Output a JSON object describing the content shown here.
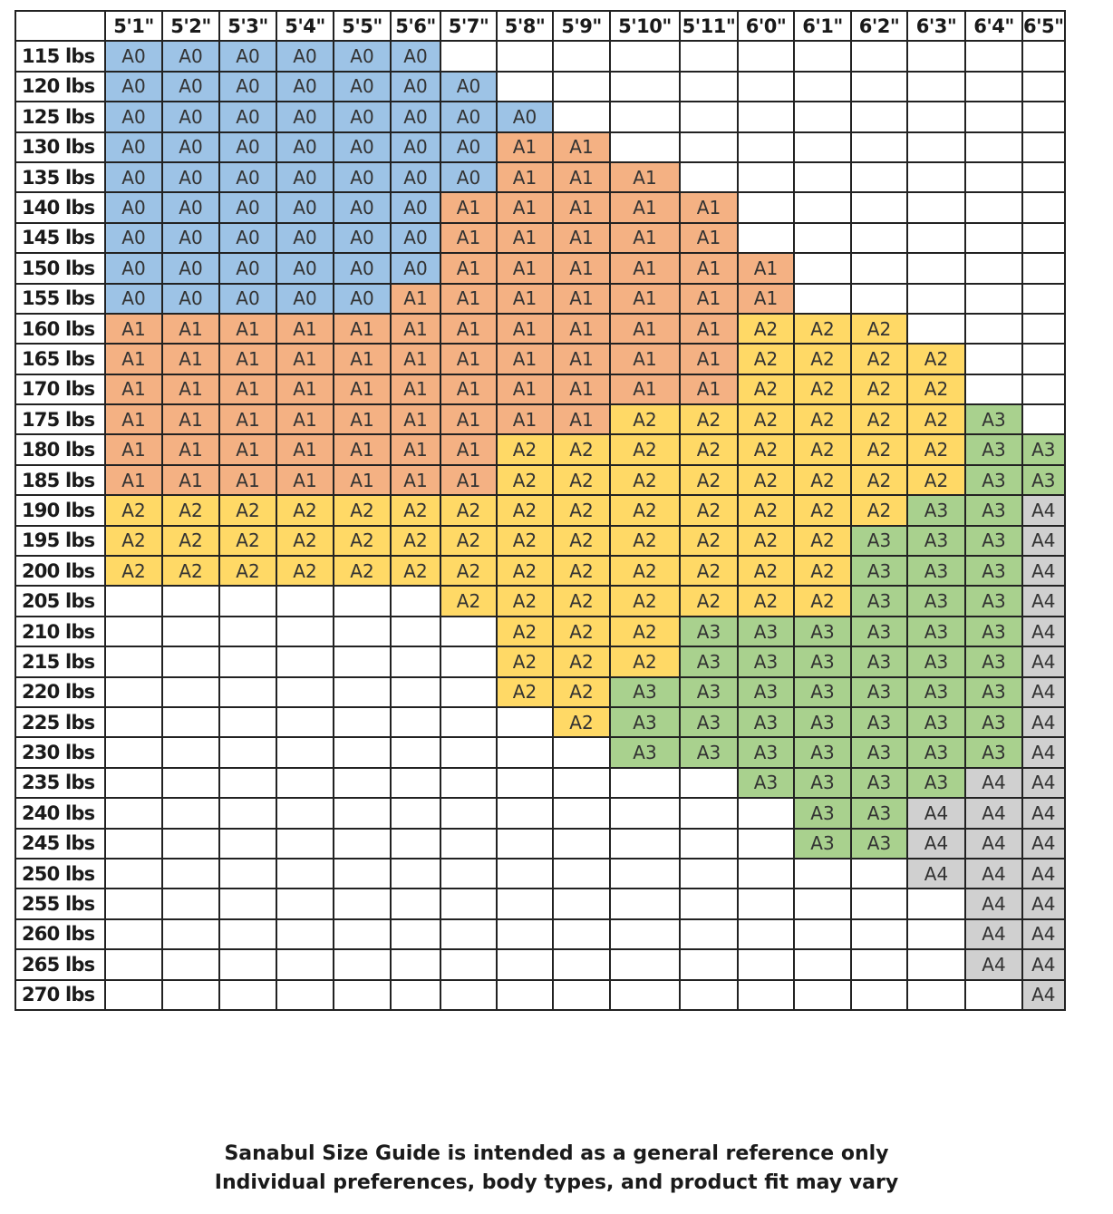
{
  "chart_data": {
    "type": "table",
    "corner": "",
    "heights": [
      "5'1\"",
      "5'2\"",
      "5'3\"",
      "5'4\"",
      "5'5\"",
      "5'6\"",
      "5'7\"",
      "5'8\"",
      "5'9\"",
      "5'10\"",
      "5'11\"",
      "6'0\"",
      "6'1\"",
      "6'2\"",
      "6'3\"",
      "6'4\"",
      "6'5\""
    ],
    "weights": [
      "115 lbs",
      "120 lbs",
      "125 lbs",
      "130 lbs",
      "135 lbs",
      "140 lbs",
      "145 lbs",
      "150 lbs",
      "155 lbs",
      "160 lbs",
      "165 lbs",
      "170 lbs",
      "175 lbs",
      "180 lbs",
      "185 lbs",
      "190 lbs",
      "195 lbs",
      "200 lbs",
      "205 lbs",
      "210 lbs",
      "215 lbs",
      "220 lbs",
      "225 lbs",
      "230 lbs",
      "235 lbs",
      "240 lbs",
      "245 lbs",
      "250 lbs",
      "255 lbs",
      "260 lbs",
      "265 lbs",
      "270 lbs"
    ],
    "rows": [
      [
        "A0",
        "A0",
        "A0",
        "A0",
        "A0",
        "A0",
        "",
        "",
        "",
        "",
        "",
        "",
        "",
        "",
        "",
        "",
        ""
      ],
      [
        "A0",
        "A0",
        "A0",
        "A0",
        "A0",
        "A0",
        "A0",
        "",
        "",
        "",
        "",
        "",
        "",
        "",
        "",
        "",
        ""
      ],
      [
        "A0",
        "A0",
        "A0",
        "A0",
        "A0",
        "A0",
        "A0",
        "A0",
        "",
        "",
        "",
        "",
        "",
        "",
        "",
        "",
        ""
      ],
      [
        "A0",
        "A0",
        "A0",
        "A0",
        "A0",
        "A0",
        "A0",
        "A1",
        "A1",
        "",
        "",
        "",
        "",
        "",
        "",
        "",
        ""
      ],
      [
        "A0",
        "A0",
        "A0",
        "A0",
        "A0",
        "A0",
        "A0",
        "A1",
        "A1",
        "A1",
        "",
        "",
        "",
        "",
        "",
        "",
        ""
      ],
      [
        "A0",
        "A0",
        "A0",
        "A0",
        "A0",
        "A0",
        "A1",
        "A1",
        "A1",
        "A1",
        "A1",
        "",
        "",
        "",
        "",
        "",
        ""
      ],
      [
        "A0",
        "A0",
        "A0",
        "A0",
        "A0",
        "A0",
        "A1",
        "A1",
        "A1",
        "A1",
        "A1",
        "",
        "",
        "",
        "",
        "",
        ""
      ],
      [
        "A0",
        "A0",
        "A0",
        "A0",
        "A0",
        "A0",
        "A1",
        "A1",
        "A1",
        "A1",
        "A1",
        "A1",
        "",
        "",
        "",
        "",
        ""
      ],
      [
        "A0",
        "A0",
        "A0",
        "A0",
        "A0",
        "A1",
        "A1",
        "A1",
        "A1",
        "A1",
        "A1",
        "A1",
        "",
        "",
        "",
        "",
        ""
      ],
      [
        "A1",
        "A1",
        "A1",
        "A1",
        "A1",
        "A1",
        "A1",
        "A1",
        "A1",
        "A1",
        "A1",
        "A2",
        "A2",
        "A2",
        "",
        "",
        ""
      ],
      [
        "A1",
        "A1",
        "A1",
        "A1",
        "A1",
        "A1",
        "A1",
        "A1",
        "A1",
        "A1",
        "A1",
        "A2",
        "A2",
        "A2",
        "A2",
        "",
        ""
      ],
      [
        "A1",
        "A1",
        "A1",
        "A1",
        "A1",
        "A1",
        "A1",
        "A1",
        "A1",
        "A1",
        "A1",
        "A2",
        "A2",
        "A2",
        "A2",
        "",
        ""
      ],
      [
        "A1",
        "A1",
        "A1",
        "A1",
        "A1",
        "A1",
        "A1",
        "A1",
        "A1",
        "A2",
        "A2",
        "A2",
        "A2",
        "A2",
        "A2",
        "A3",
        ""
      ],
      [
        "A1",
        "A1",
        "A1",
        "A1",
        "A1",
        "A1",
        "A1",
        "A2",
        "A2",
        "A2",
        "A2",
        "A2",
        "A2",
        "A2",
        "A2",
        "A3",
        "A3"
      ],
      [
        "A1",
        "A1",
        "A1",
        "A1",
        "A1",
        "A1",
        "A1",
        "A2",
        "A2",
        "A2",
        "A2",
        "A2",
        "A2",
        "A2",
        "A2",
        "A3",
        "A3"
      ],
      [
        "A2",
        "A2",
        "A2",
        "A2",
        "A2",
        "A2",
        "A2",
        "A2",
        "A2",
        "A2",
        "A2",
        "A2",
        "A2",
        "A2",
        "A3",
        "A3",
        "A4"
      ],
      [
        "A2",
        "A2",
        "A2",
        "A2",
        "A2",
        "A2",
        "A2",
        "A2",
        "A2",
        "A2",
        "A2",
        "A2",
        "A2",
        "A3",
        "A3",
        "A3",
        "A4"
      ],
      [
        "A2",
        "A2",
        "A2",
        "A2",
        "A2",
        "A2",
        "A2",
        "A2",
        "A2",
        "A2",
        "A2",
        "A2",
        "A2",
        "A3",
        "A3",
        "A3",
        "A4"
      ],
      [
        "",
        "",
        "",
        "",
        "",
        "",
        "A2",
        "A2",
        "A2",
        "A2",
        "A2",
        "A2",
        "A2",
        "A3",
        "A3",
        "A3",
        "A4"
      ],
      [
        "",
        "",
        "",
        "",
        "",
        "",
        "",
        "A2",
        "A2",
        "A2",
        "A3",
        "A3",
        "A3",
        "A3",
        "A3",
        "A3",
        "A4"
      ],
      [
        "",
        "",
        "",
        "",
        "",
        "",
        "",
        "A2",
        "A2",
        "A2",
        "A3",
        "A3",
        "A3",
        "A3",
        "A3",
        "A3",
        "A4"
      ],
      [
        "",
        "",
        "",
        "",
        "",
        "",
        "",
        "A2",
        "A2",
        "A3",
        "A3",
        "A3",
        "A3",
        "A3",
        "A3",
        "A3",
        "A4"
      ],
      [
        "",
        "",
        "",
        "",
        "",
        "",
        "",
        "",
        "A2",
        "A3",
        "A3",
        "A3",
        "A3",
        "A3",
        "A3",
        "A3",
        "A4"
      ],
      [
        "",
        "",
        "",
        "",
        "",
        "",
        "",
        "",
        "",
        "A3",
        "A3",
        "A3",
        "A3",
        "A3",
        "A3",
        "A3",
        "A4"
      ],
      [
        "",
        "",
        "",
        "",
        "",
        "",
        "",
        "",
        "",
        "",
        "",
        "A3",
        "A3",
        "A3",
        "A3",
        "A4",
        "A4"
      ],
      [
        "",
        "",
        "",
        "",
        "",
        "",
        "",
        "",
        "",
        "",
        "",
        "",
        "A3",
        "A3",
        "A4",
        "A4",
        "A4"
      ],
      [
        "",
        "",
        "",
        "",
        "",
        "",
        "",
        "",
        "",
        "",
        "",
        "",
        "A3",
        "A3",
        "A4",
        "A4",
        "A4"
      ],
      [
        "",
        "",
        "",
        "",
        "",
        "",
        "",
        "",
        "",
        "",
        "",
        "",
        "",
        "",
        "A4",
        "A4",
        "A4"
      ],
      [
        "",
        "",
        "",
        "",
        "",
        "",
        "",
        "",
        "",
        "",
        "",
        "",
        "",
        "",
        "",
        "A4",
        "A4"
      ],
      [
        "",
        "",
        "",
        "",
        "",
        "",
        "",
        "",
        "",
        "",
        "",
        "",
        "",
        "",
        "",
        "A4",
        "A4"
      ],
      [
        "",
        "",
        "",
        "",
        "",
        "",
        "",
        "",
        "",
        "",
        "",
        "",
        "",
        "",
        "",
        "A4",
        "A4"
      ],
      [
        "",
        "",
        "",
        "",
        "",
        "",
        "",
        "",
        "",
        "",
        "",
        "",
        "",
        "",
        "",
        "",
        "A4"
      ]
    ],
    "size_colors": {
      "A0": "#9dc3e6",
      "A1": "#f4b183",
      "A2": "#ffd966",
      "A3": "#a9d18e",
      "A4": "#d0d0d0",
      "empty": "#ffffff"
    }
  },
  "footer": {
    "line1": "Sanabul Size Guide is intended as a general reference only",
    "line2": "Individual preferences, body types, and product fit may vary"
  }
}
